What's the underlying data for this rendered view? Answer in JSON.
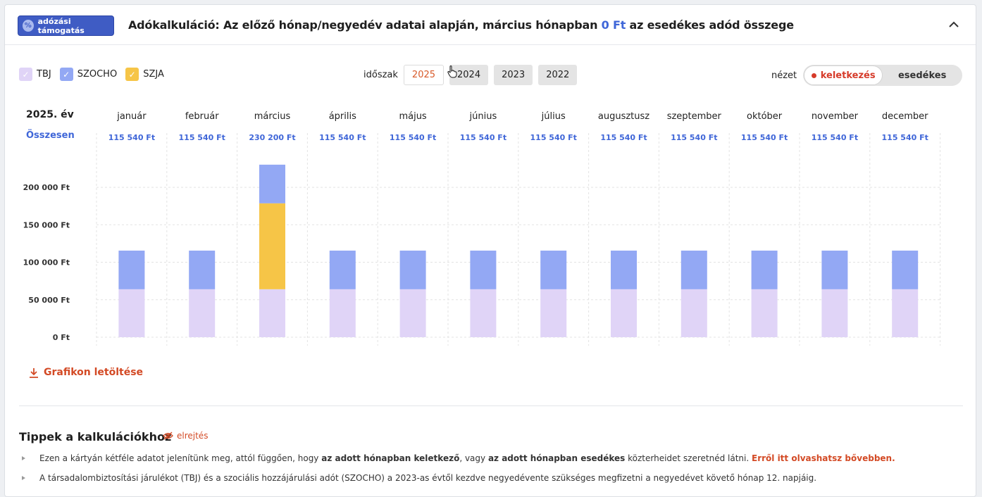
{
  "header": {
    "badge_label": "adózási támogatás",
    "badge_icon": "percent-icon",
    "title_prefix": "Adókalkuláció: Az előző hónap/negyedév adatai alapján, március hónapban ",
    "title_amount": "0 Ft",
    "title_suffix": " az esedékes adód összege",
    "collapse_icon": "chevron-up-icon"
  },
  "legend": [
    {
      "label": "TBJ",
      "color": "#e0d4f7",
      "checked": true
    },
    {
      "label": "SZOCHO",
      "color": "#93a8f4",
      "checked": true
    },
    {
      "label": "SZJA",
      "color": "#f6c547",
      "checked": true
    }
  ],
  "period": {
    "label": "időszak",
    "years": [
      "2025",
      "2024",
      "2023",
      "2022"
    ],
    "selected": "2025"
  },
  "view": {
    "label": "nézet",
    "options": [
      "keletkezés",
      "esedékes"
    ],
    "selected": "keletkezés"
  },
  "chart_data": {
    "type": "bar",
    "stacked": true,
    "year_label": "2025. év",
    "total_label": "Összesen",
    "categories": [
      "január",
      "február",
      "március",
      "április",
      "május",
      "június",
      "július",
      "augusztusz",
      "szeptember",
      "október",
      "november",
      "december"
    ],
    "totals": [
      "115 540 Ft",
      "115 540 Ft",
      "230 200 Ft",
      "115 540 Ft",
      "115 540 Ft",
      "115 540 Ft",
      "115 540 Ft",
      "115 540 Ft",
      "115 540 Ft",
      "115 540 Ft",
      "115 540 Ft",
      "115 540 Ft"
    ],
    "series": [
      {
        "name": "TBJ",
        "color": "#e0d4f7",
        "values": [
          64000,
          64000,
          64000,
          64000,
          64000,
          64000,
          64000,
          64000,
          64000,
          64000,
          64000,
          64000
        ]
      },
      {
        "name": "SZJA",
        "color": "#f6c547",
        "values": [
          0,
          0,
          114660,
          0,
          0,
          0,
          0,
          0,
          0,
          0,
          0,
          0
        ]
      },
      {
        "name": "SZOCHO",
        "color": "#93a8f4",
        "values": [
          51540,
          51540,
          51540,
          51540,
          51540,
          51540,
          51540,
          51540,
          51540,
          51540,
          51540,
          51540
        ]
      }
    ],
    "y_ticks": [
      "0 Ft",
      "50 000 Ft",
      "100 000 Ft",
      "150 000 Ft",
      "200 000 Ft"
    ],
    "y_tick_values": [
      0,
      50000,
      100000,
      150000,
      200000
    ],
    "ylim": [
      0,
      232000
    ],
    "grid": true
  },
  "download": {
    "label": "Grafikon letöltése",
    "icon": "download-icon"
  },
  "tips": {
    "title": "Tippek a kalkulációkhoz",
    "hide_label": "elrejtés",
    "hide_icon": "eye-off-icon",
    "items": [
      {
        "p1": "Ezen a kártyán kétféle adatot jelenítünk meg, attól függően, hogy ",
        "b1": "az adott hónapban keletkező",
        "p2": ", vagy ",
        "b2": "az adott hónapban esedékes",
        "p3": " közterheidet szeretnéd látni. ",
        "link": "Erről itt olvashatsz bővebben."
      },
      {
        "text": "A társadalombiztosítási járulékot (TBJ) és a szociális hozzájárulási adót (SZOCHO) a 2023-as évtől kezdve negyedévente szükséges megfizetni a negyedévet követő hónap 12. napjáig."
      }
    ]
  }
}
